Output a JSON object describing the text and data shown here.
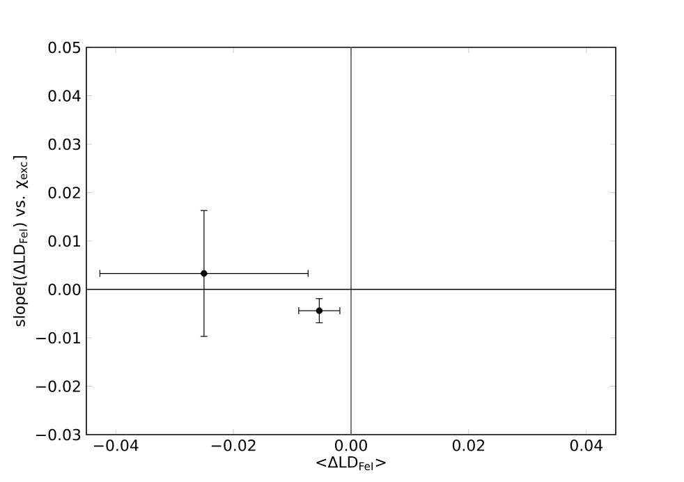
{
  "chart_data": {
    "type": "scatter",
    "xlabel": "<ΔLD$_{FeI}$>",
    "ylabel": "slope[(ΔLD$_{FeI}$) vs. χ$_{exc}$]",
    "x": [
      -0.025,
      -0.0054
    ],
    "values": [
      0.0033,
      -0.0044
    ],
    "errors": [
      0.013,
      0.0025
    ],
    "xerrors": [
      0.0177,
      0.0035
    ],
    "color": "#000000",
    "marker": "circle",
    "grid": false,
    "xlim": [
      -0.045,
      0.045
    ],
    "xticks": [
      {
        "value": -0.04,
        "label": "−0.04"
      },
      {
        "value": -0.02,
        "label": "−0.02"
      },
      {
        "value": 0,
        "label": "0.00"
      },
      {
        "value": 0.02,
        "label": "0.02"
      },
      {
        "value": 0.04,
        "label": "0.04"
      }
    ],
    "ylim": [
      -0.03,
      0.05
    ],
    "yticks": [
      {
        "value": -0.03,
        "label": "−0.03"
      },
      {
        "value": -0.02,
        "label": "−0.02"
      },
      {
        "value": -0.01,
        "label": "−0.01"
      },
      {
        "value": 0,
        "label": "0.00"
      },
      {
        "value": 0.01,
        "label": "0.01"
      },
      {
        "value": 0.02,
        "label": "0.02"
      },
      {
        "value": 0.03,
        "label": "0.03"
      },
      {
        "value": 0.04,
        "label": "0.04"
      },
      {
        "value": 0.05,
        "label": "0.05"
      }
    ],
    "ref_lines": [
      {
        "axis": "x",
        "value": 0,
        "color": "#555555"
      },
      {
        "axis": "y",
        "value": 0,
        "color": "#000000"
      }
    ]
  }
}
